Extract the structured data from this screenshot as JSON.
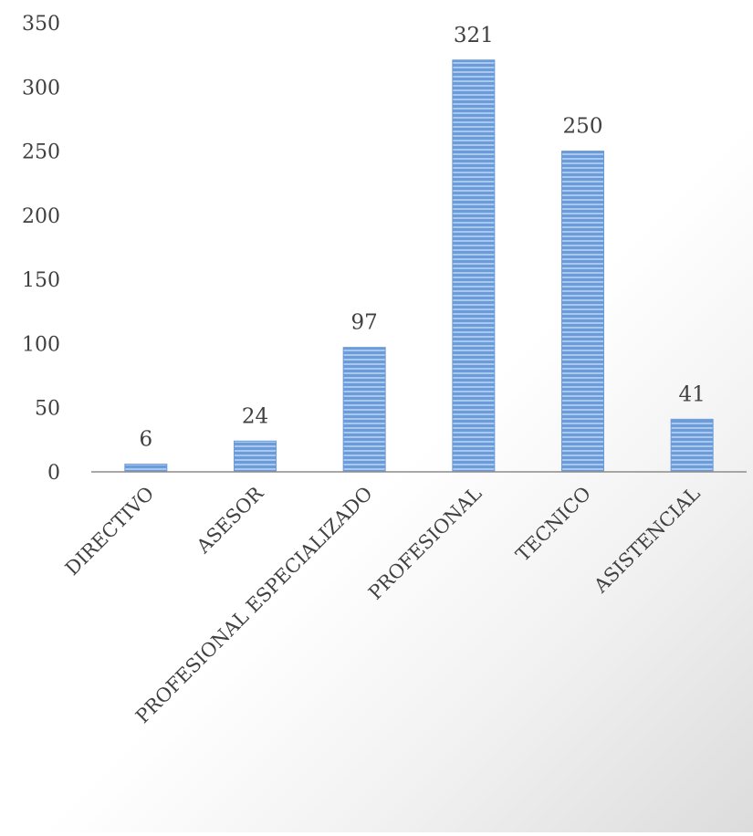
{
  "chart_data": {
    "type": "bar",
    "title": "",
    "xlabel": "",
    "ylabel": "",
    "categories": [
      "DIRECTIVO",
      "ASESOR",
      "PROFESIONAL ESPECIALIZADO",
      "PROFESIONAL",
      "TECNICO",
      "ASISTENCIAL"
    ],
    "values": [
      6,
      24,
      97,
      321,
      250,
      41
    ],
    "data_labels": [
      "6",
      "24",
      "97",
      "321",
      "250",
      "41"
    ],
    "ylim": [
      0,
      350
    ],
    "yticks": [
      "0",
      "50",
      "100",
      "150",
      "200",
      "250",
      "300",
      "350"
    ],
    "grid": false,
    "legend": "none",
    "bar_color": "#6b9bd8",
    "bar_stripe_color": "#a9c8ee",
    "axis_color": "#8c8c8c"
  }
}
